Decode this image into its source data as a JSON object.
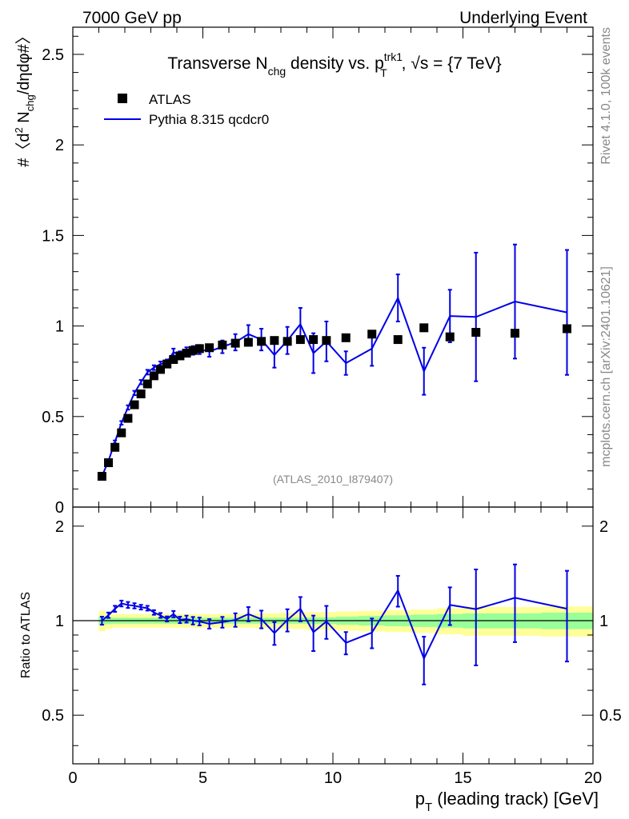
{
  "header": {
    "left": "7000 GeV pp",
    "right": "Underlying Event"
  },
  "side_labels": {
    "rivet": "Rivet 4.1.0,  100k events",
    "mcplots": "mcplots.cern.ch [arXiv:2401.10621]"
  },
  "colors": {
    "mc": "#0000e6",
    "band_inner": "#99ff99",
    "band_outer": "#ffff99",
    "data": "#000000"
  },
  "chart_data": {
    "type": "scatter",
    "title": {
      "main": "Transverse N",
      "main_sub": "chg",
      "mid": " density vs. p",
      "mid_sup": "trk1",
      "mid_sub": "T",
      "tail": ", √s = {7 TeV}"
    },
    "watermark": "(ATLAS_2010_I879407)",
    "xlabel": {
      "main": "p",
      "sub": "T",
      "tail": " (leading track) [GeV]"
    },
    "ylabel_main": {
      "a": "#〈d",
      "sup": "2",
      "b": " N",
      "sub": "chg",
      "c": "/dηdφ#〉"
    },
    "ylabel_ratio": "Ratio to ATLAS",
    "xlim": [
      0,
      20
    ],
    "ylim": [
      0,
      2.65
    ],
    "ratio_ylim": [
      0.35,
      2.3
    ],
    "x_ticks": [
      "0",
      "5",
      "10",
      "15",
      "20"
    ],
    "y_ticks": [
      "0",
      "0.5",
      "1",
      "1.5",
      "2",
      "2.5"
    ],
    "ratio_ticks": [
      "0.5",
      "1",
      "2"
    ],
    "legend": {
      "data": "ATLAS",
      "mc": "Pythia 8.315 qcdcr0"
    },
    "x": [
      1.12,
      1.37,
      1.62,
      1.87,
      2.12,
      2.37,
      2.62,
      2.87,
      3.12,
      3.37,
      3.62,
      3.87,
      4.12,
      4.37,
      4.62,
      4.87,
      5.25,
      5.75,
      6.25,
      6.75,
      7.25,
      7.75,
      8.25,
      8.75,
      9.25,
      9.75,
      10.5,
      11.5,
      12.5,
      13.5,
      14.5,
      15.5,
      17.0,
      19.0
    ],
    "atlas": [
      0.17,
      0.245,
      0.33,
      0.41,
      0.49,
      0.565,
      0.625,
      0.68,
      0.725,
      0.76,
      0.79,
      0.815,
      0.835,
      0.85,
      0.865,
      0.875,
      0.88,
      0.895,
      0.905,
      0.91,
      0.915,
      0.92,
      0.915,
      0.925,
      0.925,
      0.92,
      0.935,
      0.955,
      0.925,
      0.99,
      0.94,
      0.965,
      0.96,
      0.985
    ],
    "pythia": [
      0.17,
      0.255,
      0.36,
      0.465,
      0.55,
      0.63,
      0.69,
      0.745,
      0.77,
      0.79,
      0.8,
      0.855,
      0.84,
      0.86,
      0.865,
      0.87,
      0.86,
      0.885,
      0.91,
      0.955,
      0.925,
      0.84,
      0.92,
      1.01,
      0.85,
      0.915,
      0.795,
      0.875,
      1.155,
      0.75,
      1.055,
      1.05,
      1.135,
      1.075
    ],
    "pythia_err": [
      0.005,
      0.005,
      0.008,
      0.01,
      0.012,
      0.012,
      0.012,
      0.013,
      0.013,
      0.014,
      0.015,
      0.02,
      0.02,
      0.022,
      0.024,
      0.025,
      0.03,
      0.035,
      0.045,
      0.05,
      0.06,
      0.07,
      0.075,
      0.09,
      0.11,
      0.11,
      0.065,
      0.095,
      0.13,
      0.13,
      0.145,
      0.355,
      0.315,
      0.345
    ],
    "band_inner_half": [
      0.03,
      0.025,
      0.022,
      0.022,
      0.022,
      0.022,
      0.022,
      0.022,
      0.022,
      0.022,
      0.022,
      0.022,
      0.022,
      0.022,
      0.022,
      0.022,
      0.022,
      0.022,
      0.022,
      0.022,
      0.022,
      0.022,
      0.022,
      0.022,
      0.025,
      0.025,
      0.03,
      0.035,
      0.04,
      0.045,
      0.05,
      0.055,
      0.055,
      0.06
    ],
    "band_outer_half": [
      0.075,
      0.06,
      0.05,
      0.05,
      0.05,
      0.05,
      0.05,
      0.05,
      0.05,
      0.05,
      0.05,
      0.05,
      0.05,
      0.05,
      0.05,
      0.05,
      0.05,
      0.05,
      0.05,
      0.05,
      0.055,
      0.055,
      0.06,
      0.06,
      0.065,
      0.065,
      0.07,
      0.075,
      0.08,
      0.085,
      0.095,
      0.105,
      0.105,
      0.11
    ]
  }
}
